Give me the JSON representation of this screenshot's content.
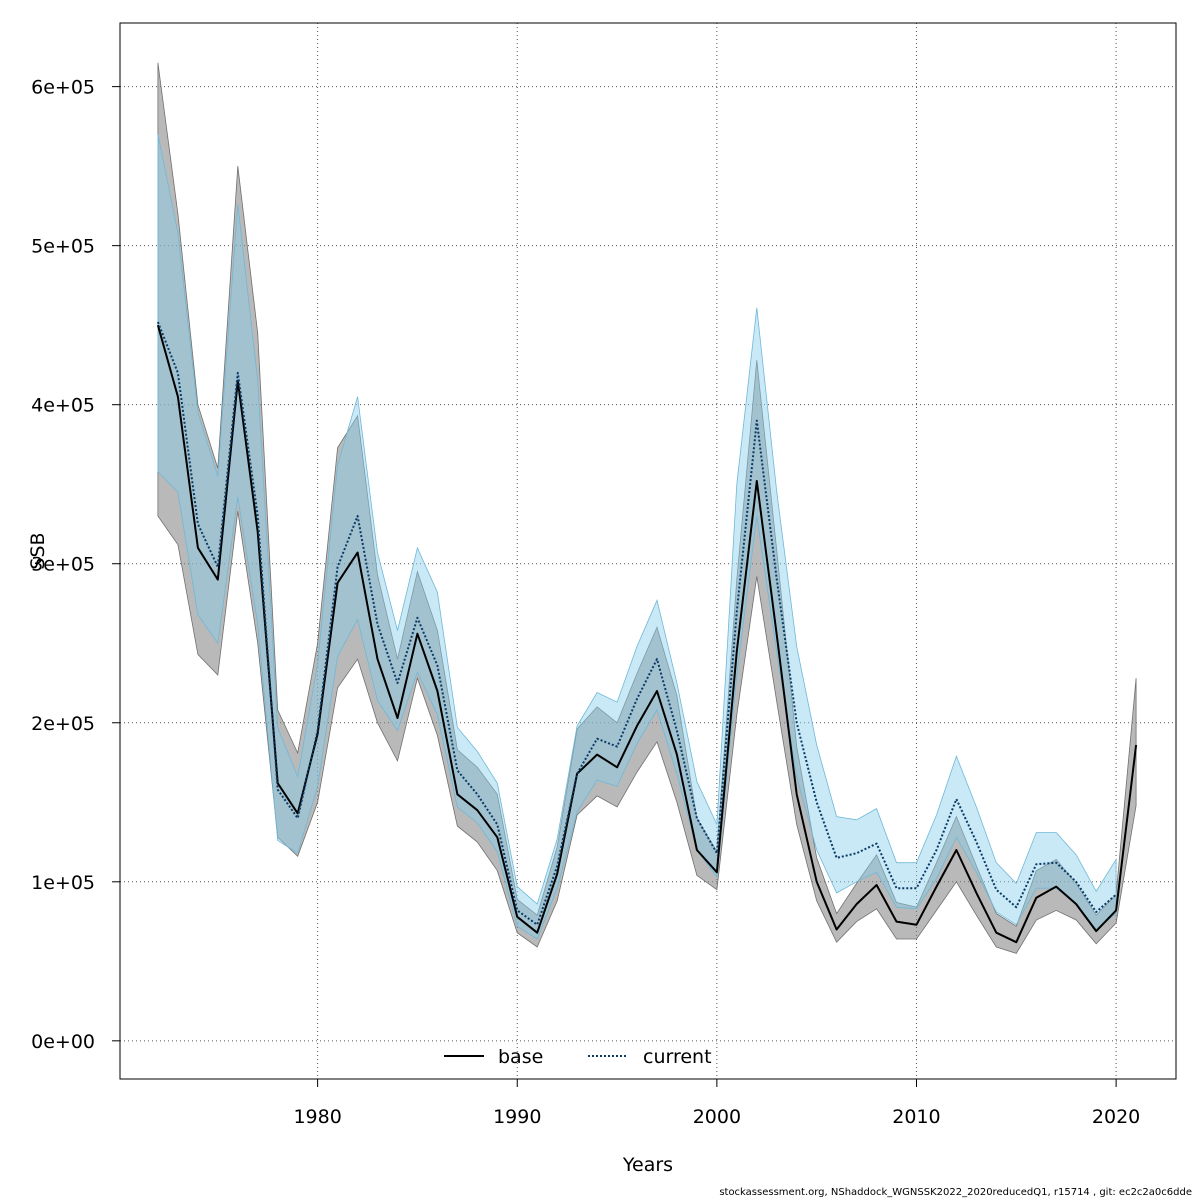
{
  "chart_data": {
    "type": "line",
    "xlabel": "Years",
    "ylabel": "SSB",
    "xlim": [
      1970.1,
      2023.0
    ],
    "ylim": [
      -24000,
      640000
    ],
    "x_ticks": [
      1980,
      1990,
      2000,
      2010,
      2020
    ],
    "y_ticks": [
      0,
      100000,
      200000,
      300000,
      400000,
      500000,
      600000
    ],
    "x_tick_labels": [
      "1980",
      "1990",
      "2000",
      "2010",
      "2020"
    ],
    "y_tick_labels": [
      "0e+00",
      "1e+05",
      "2e+05",
      "3e+05",
      "4e+05",
      "5e+05",
      "6e+05"
    ],
    "grid": true,
    "legend_position": "bottom",
    "series": [
      {
        "name": "base",
        "color": "#000000",
        "band_color": "#808080",
        "line_style": "solid",
        "x": [
          1972,
          1973,
          1974,
          1975,
          1976,
          1977,
          1978,
          1979,
          1980,
          1981,
          1982,
          1983,
          1984,
          1985,
          1986,
          1987,
          1988,
          1989,
          1990,
          1991,
          1992,
          1993,
          1994,
          1995,
          1996,
          1997,
          1998,
          1999,
          2000,
          2001,
          2002,
          2003,
          2004,
          2005,
          2006,
          2007,
          2008,
          2009,
          2010,
          2011,
          2012,
          2013,
          2014,
          2015,
          2016,
          2017,
          2018,
          2019,
          2020,
          2021
        ],
        "values": [
          450000,
          405000,
          310000,
          290000,
          415000,
          320000,
          162000,
          143000,
          193000,
          288000,
          307000,
          240000,
          203000,
          256000,
          220000,
          155000,
          145000,
          128000,
          78000,
          68000,
          105000,
          168000,
          180000,
          172000,
          198000,
          220000,
          180000,
          120000,
          106000,
          245000,
          352000,
          255000,
          155000,
          100000,
          70000,
          86000,
          98000,
          75000,
          73000,
          97000,
          120000,
          93000,
          68000,
          62000,
          90000,
          97000,
          86000,
          69000,
          82000,
          186000
        ],
        "lower": [
          330000,
          312000,
          243000,
          230000,
          333000,
          250000,
          128000,
          116000,
          150000,
          222000,
          240000,
          200000,
          176000,
          228000,
          192000,
          135000,
          125000,
          107000,
          68000,
          59000,
          88000,
          142000,
          154000,
          147000,
          169000,
          188000,
          150000,
          104000,
          95000,
          205000,
          292000,
          213000,
          136000,
          88000,
          62000,
          75000,
          83000,
          64000,
          64000,
          82000,
          100000,
          79000,
          59000,
          55000,
          76000,
          82000,
          76000,
          61000,
          74000,
          148000
        ],
        "upper": [
          615000,
          520000,
          400000,
          360000,
          550000,
          445000,
          208000,
          181000,
          250000,
          373000,
          393000,
          293000,
          240000,
          295000,
          258000,
          183000,
          172000,
          155000,
          89000,
          79000,
          122000,
          196000,
          210000,
          200000,
          231000,
          260000,
          217000,
          140000,
          119000,
          290000,
          428000,
          308000,
          185000,
          115000,
          80000,
          99000,
          117000,
          87000,
          84000,
          112000,
          141000,
          110000,
          80000,
          72000,
          107000,
          114000,
          99000,
          79000,
          92000,
          228000
        ]
      },
      {
        "name": "current",
        "color": "#0b3a66",
        "band_color": "#87ceeb",
        "line_style": "dotted",
        "x": [
          1972,
          1973,
          1974,
          1975,
          1976,
          1977,
          1978,
          1979,
          1980,
          1981,
          1982,
          1983,
          1984,
          1985,
          1986,
          1987,
          1988,
          1989,
          1990,
          1991,
          1992,
          1993,
          1994,
          1995,
          1996,
          1997,
          1998,
          1999,
          2000,
          2001,
          2002,
          2003,
          2004,
          2005,
          2006,
          2007,
          2008,
          2009,
          2010,
          2011,
          2012,
          2013,
          2014,
          2015,
          2016,
          2017,
          2018,
          2019,
          2020,
          2021
        ],
        "values": [
          452000,
          420000,
          325000,
          298000,
          420000,
          330000,
          158000,
          140000,
          195000,
          298000,
          330000,
          262000,
          225000,
          266000,
          236000,
          170000,
          155000,
          136000,
          82000,
          73000,
          110000,
          168000,
          190000,
          185000,
          215000,
          240000,
          195000,
          140000,
          118000,
          270000,
          390000,
          290000,
          200000,
          150000,
          115000,
          118000,
          124000,
          96000,
          96000,
          120000,
          152000,
          125000,
          95000,
          84000,
          111000,
          112000,
          100000,
          81000,
          92000,
          null
        ],
        "lower": [
          358000,
          345000,
          268000,
          250000,
          342000,
          262000,
          126000,
          118000,
          160000,
          242000,
          265000,
          214000,
          195000,
          232000,
          205000,
          147000,
          137000,
          119000,
          72000,
          64000,
          96000,
          144000,
          164000,
          160000,
          187000,
          208000,
          168000,
          120000,
          103000,
          230000,
          330000,
          244000,
          166000,
          120000,
          93000,
          100000,
          106000,
          84000,
          83000,
          102000,
          128000,
          106000,
          81000,
          73000,
          96000,
          96000,
          86000,
          70000,
          80000,
          null
        ],
        "upper": [
          570000,
          508000,
          395000,
          355000,
          526000,
          415000,
          197000,
          166000,
          237000,
          362000,
          405000,
          307000,
          258000,
          310000,
          282000,
          197000,
          182000,
          162000,
          97000,
          86000,
          127000,
          198000,
          219000,
          213000,
          248000,
          277000,
          225000,
          163000,
          136000,
          350000,
          461000,
          345000,
          248000,
          186000,
          141000,
          139000,
          146000,
          112000,
          112000,
          142000,
          179000,
          147000,
          112000,
          99000,
          131000,
          131000,
          117000,
          94000,
          114000,
          null
        ]
      }
    ]
  },
  "footer_text": "stockassessment.org, NShaddock_WGNSSK2022_2020reducedQ1, r15714 , git: ec2c2a0c6dde"
}
